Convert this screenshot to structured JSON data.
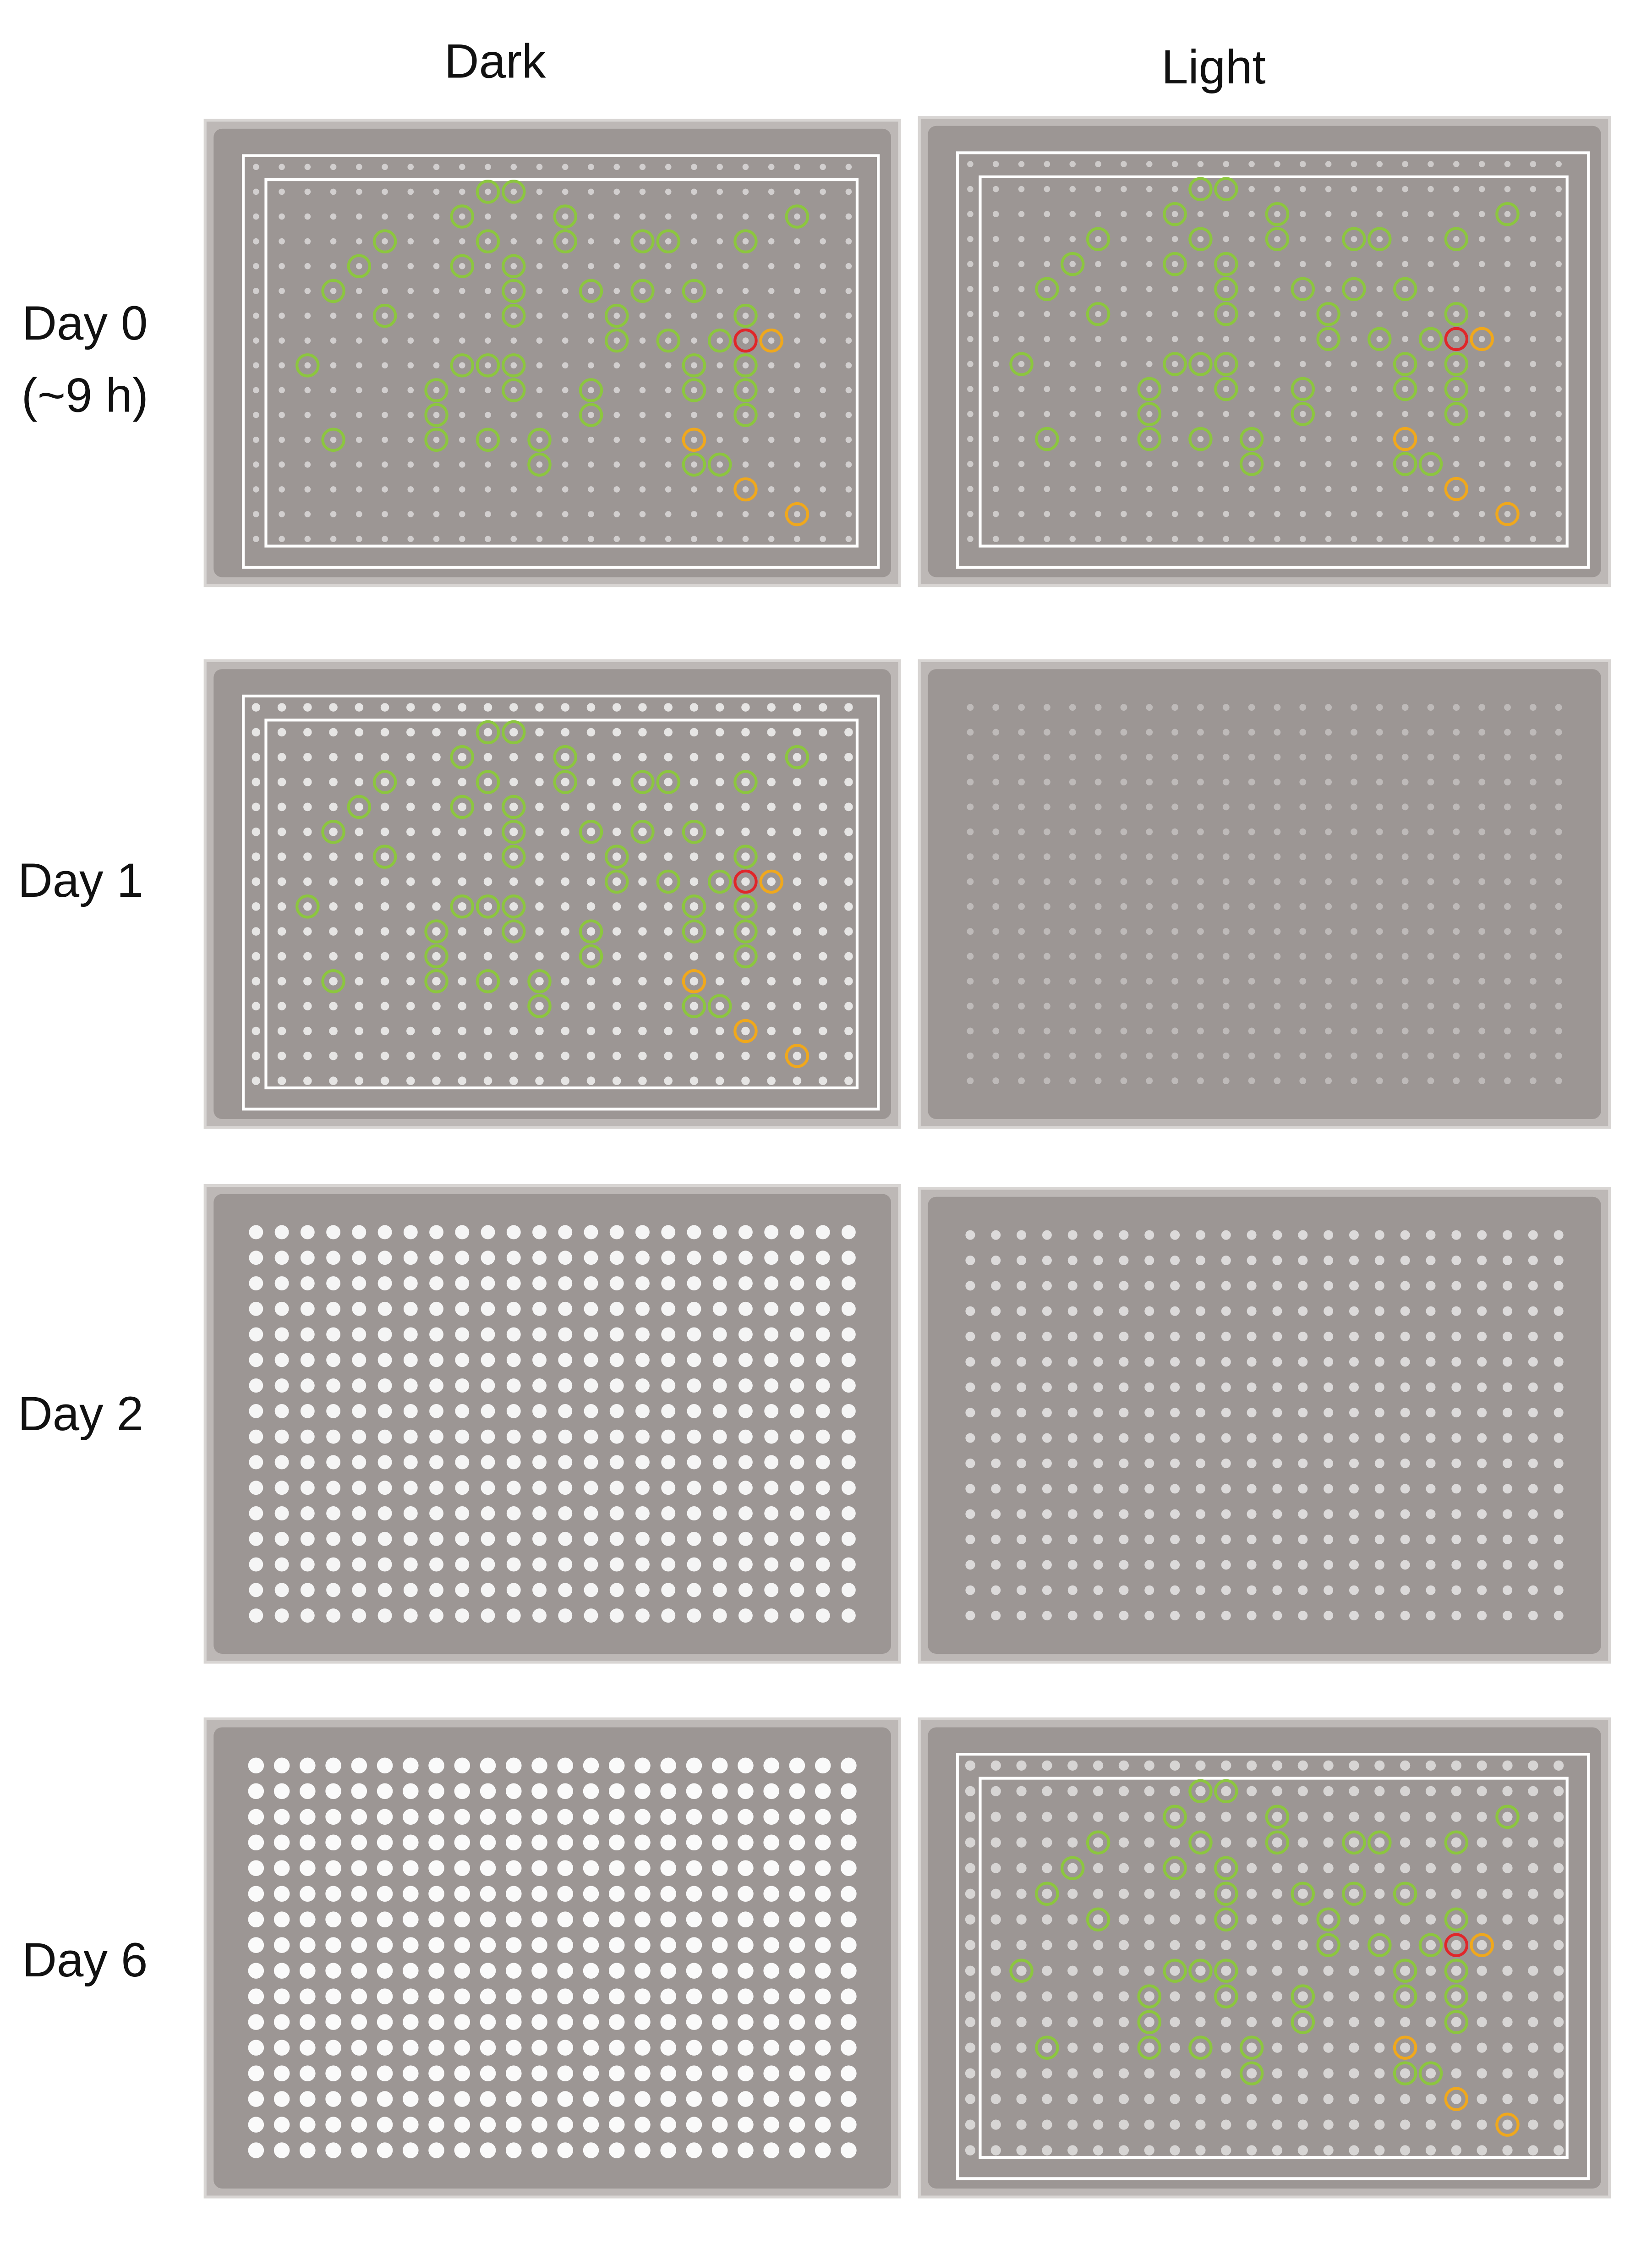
{
  "columns": [
    "Dark",
    "Light"
  ],
  "rows": [
    {
      "label": "Day 0",
      "sublabel": "(~9 h)"
    },
    {
      "label": "Day 1"
    },
    {
      "label": "Day 2"
    },
    {
      "label": "Day 6"
    }
  ]
}
